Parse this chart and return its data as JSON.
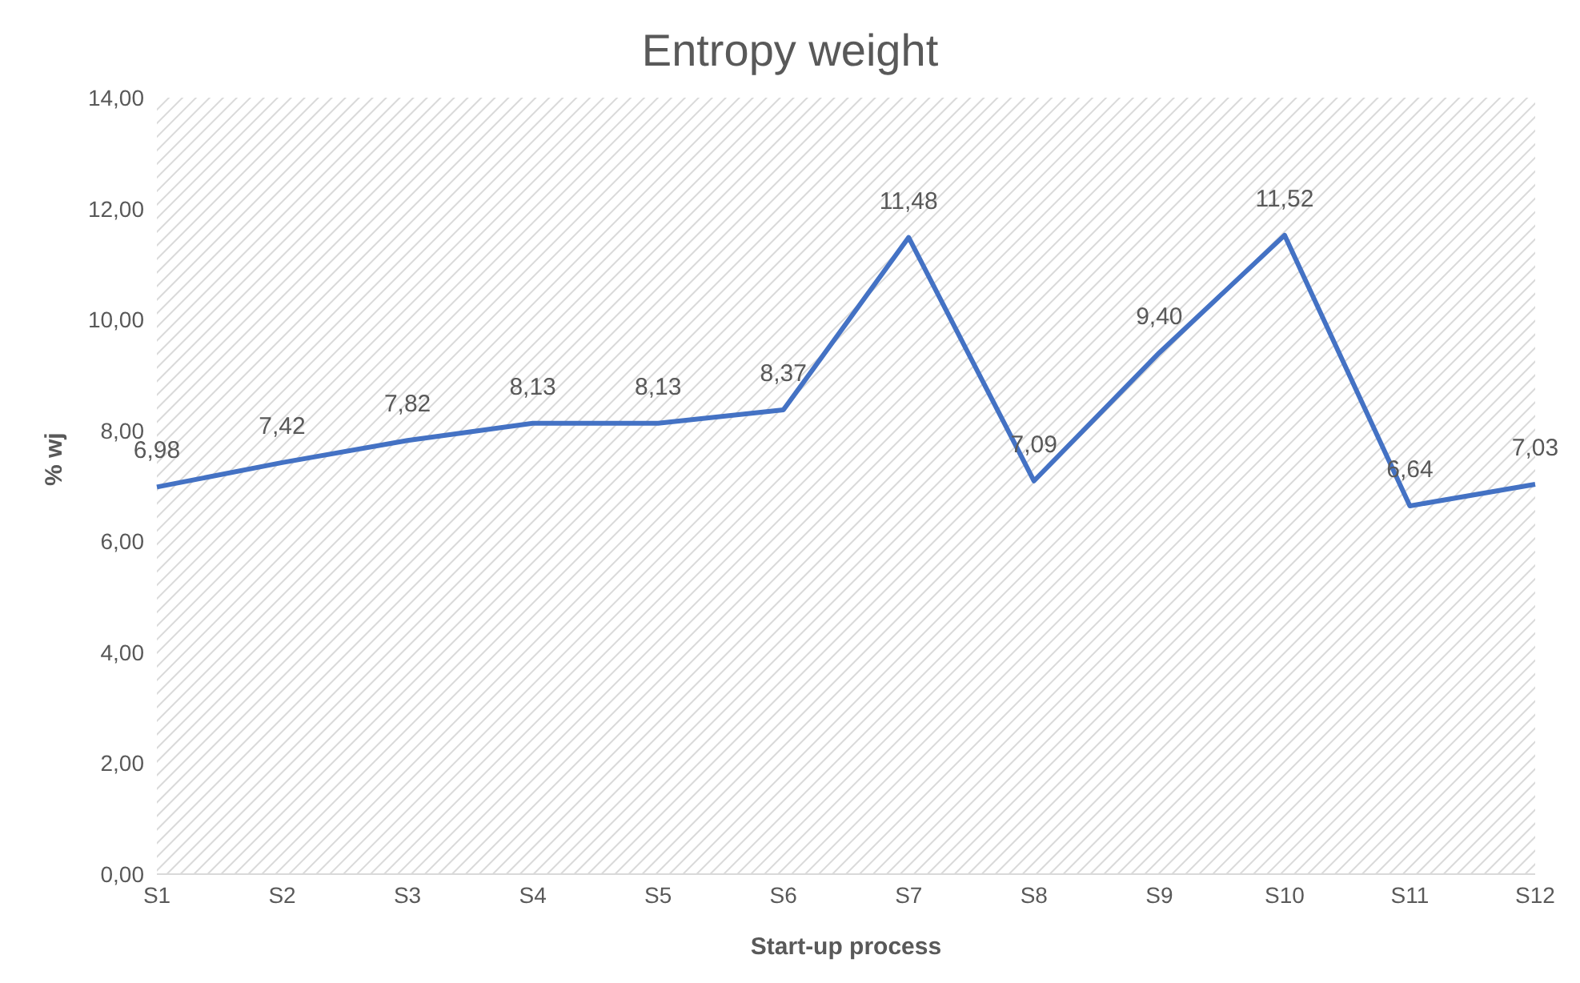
{
  "chart_data": {
    "type": "line",
    "title": "Entropy weight",
    "xlabel": "Start-up process",
    "ylabel": "% wj",
    "categories": [
      "S1",
      "S2",
      "S3",
      "S4",
      "S5",
      "S6",
      "S7",
      "S8",
      "S9",
      "S10",
      "S11",
      "S12"
    ],
    "series": [
      {
        "color": "#4472c4",
        "values": [
          6.98,
          7.42,
          7.82,
          8.13,
          8.13,
          8.37,
          11.48,
          7.09,
          9.4,
          11.52,
          6.64,
          7.03
        ],
        "value_labels": [
          "6,98",
          "7,42",
          "7,82",
          "8,13",
          "8,13",
          "8,37",
          "11,48",
          "7,09",
          "9,40",
          "11,52",
          "6,64",
          "7,03"
        ]
      }
    ],
    "ylim": [
      0,
      14
    ],
    "yticks": [
      {
        "value": 0,
        "label": "0,00"
      },
      {
        "value": 2,
        "label": "2,00"
      },
      {
        "value": 4,
        "label": "4,00"
      },
      {
        "value": 6,
        "label": "6,00"
      },
      {
        "value": 8,
        "label": "8,00"
      },
      {
        "value": 10,
        "label": "10,00"
      },
      {
        "value": 12,
        "label": "12,00"
      },
      {
        "value": 14,
        "label": "14,00"
      }
    ],
    "grid": false,
    "legend": false,
    "marker": "none",
    "line_style": "solid"
  }
}
